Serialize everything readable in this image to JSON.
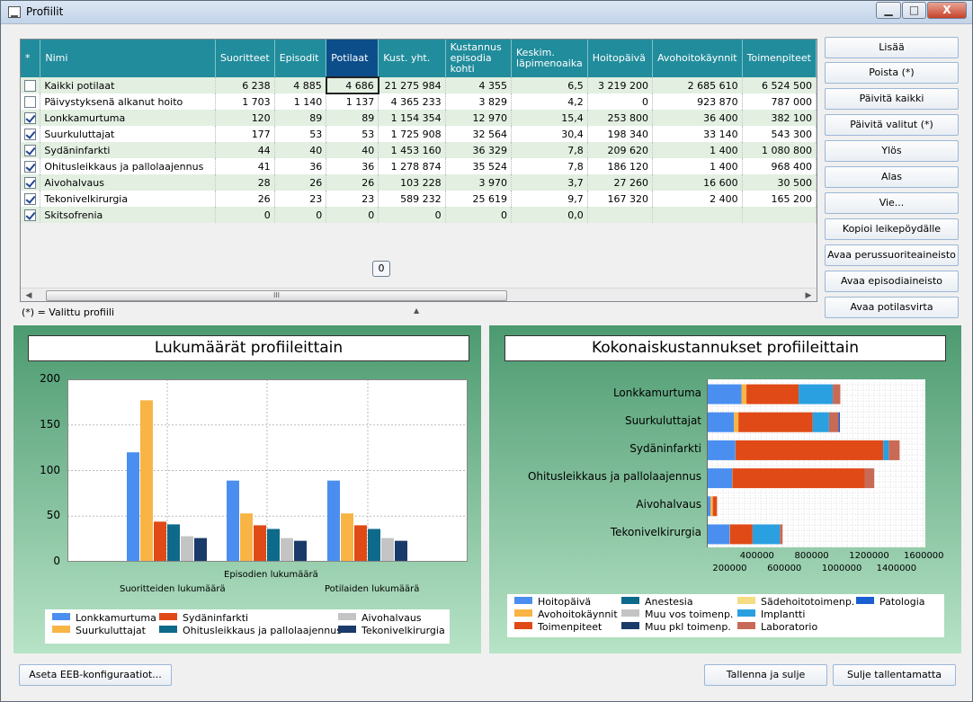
{
  "window": {
    "title": "Profiilit",
    "min_glyph": "▁",
    "max_glyph": "□",
    "close_glyph": "X"
  },
  "grid": {
    "columns": [
      "*",
      "Nimi",
      "Suoritteet",
      "Episodit",
      "Potilaat",
      "Kust. yht.",
      "Kustannus episodia kohti",
      "Keskim. läpimenoaika",
      "Hoitopäivä",
      "Avohoitokäynnit",
      "Toimenpiteet"
    ],
    "rows": [
      {
        "checked": false,
        "cells": [
          "Kaikki potilaat",
          "6 238",
          "4 885",
          "4 686",
          "21 275 984",
          "4 355",
          "6,5",
          "3 219 200",
          "2 685 610",
          "6 524 500"
        ]
      },
      {
        "checked": false,
        "cells": [
          "Päivystyksenä alkanut hoito",
          "1 703",
          "1 140",
          "1 137",
          "4 365 233",
          "3 829",
          "4,2",
          "0",
          "923 870",
          "787 000"
        ]
      },
      {
        "checked": true,
        "cells": [
          "Lonkkamurtuma",
          "120",
          "89",
          "89",
          "1 154 354",
          "12 970",
          "15,4",
          "253 800",
          "36 400",
          "382 100"
        ]
      },
      {
        "checked": true,
        "cells": [
          "Suurkuluttajat",
          "177",
          "53",
          "53",
          "1 725 908",
          "32 564",
          "30,4",
          "198 340",
          "33 140",
          "543 300"
        ]
      },
      {
        "checked": true,
        "cells": [
          "Sydäninfarkti",
          "44",
          "40",
          "40",
          "1 453 160",
          "36 329",
          "7,8",
          "209 620",
          "1 400",
          "1 080 800"
        ]
      },
      {
        "checked": true,
        "cells": [
          "Ohitusleikkaus ja pallolaajennus",
          "41",
          "36",
          "36",
          "1 278 874",
          "35 524",
          "7,8",
          "186 120",
          "1 400",
          "968 400"
        ]
      },
      {
        "checked": true,
        "cells": [
          "Aivohalvaus",
          "28",
          "26",
          "26",
          "103 228",
          "3 970",
          "3,7",
          "27 260",
          "16 600",
          "30 500"
        ]
      },
      {
        "checked": true,
        "cells": [
          "Tekonivelkirurgia",
          "26",
          "23",
          "23",
          "589 232",
          "25 619",
          "9,7",
          "167 320",
          "2 400",
          "165 200"
        ]
      },
      {
        "checked": true,
        "cells": [
          "Skitsofrenia",
          "0",
          "0",
          "0",
          "0",
          "0",
          "0,0",
          "",
          "",
          ""
        ]
      }
    ],
    "tooltip": "0",
    "scroll_grip": "III"
  },
  "note": "(*) = Valittu profiili",
  "splitter_glyph": "▲",
  "buttons": {
    "lisaa": "Lisää",
    "poista": "Poista (*)",
    "paivita_kaikki": "Päivitä kaikki",
    "paivita_valitut": "Päivitä valitut (*)",
    "ylos": "Ylös",
    "alas": "Alas",
    "vie": "Vie...",
    "kopioi": "Kopioi leikepöydälle",
    "avaa_perus": "Avaa perussuoriteaineisto",
    "avaa_episodi": "Avaa episodiaineisto",
    "avaa_potilas": "Avaa potilasvirta",
    "aseta": "Aseta EEB-konfiguraatiot...",
    "tallenna": "Tallenna ja sulje",
    "sulje": "Sulje tallentamatta"
  },
  "colors": {
    "Lonkkamurtuma": "#4a8ff0",
    "Suurkuluttajat": "#f8b444",
    "Sydäninfarkti": "#e04a16",
    "Ohitusleikkaus ja pallolaajennus": "#0e6a8a",
    "Aivohalvaus": "#c4c4c4",
    "Tekonivelkirurgia": "#1a3a6a"
  },
  "chart_data": [
    {
      "type": "bar",
      "title": "Lukumäärät profiileittain",
      "categories": [
        "Suoritteiden lukumäärä",
        "Episodien lukumäärä",
        "Potilaiden lukumäärä"
      ],
      "ylim": [
        0,
        200
      ],
      "yticks": [
        "0",
        "50",
        "100",
        "150",
        "200"
      ],
      "series": [
        {
          "name": "Lonkkamurtuma",
          "values": [
            120,
            89,
            89
          ]
        },
        {
          "name": "Suurkuluttajat",
          "values": [
            177,
            53,
            53
          ]
        },
        {
          "name": "Sydäninfarkti",
          "values": [
            44,
            40,
            40
          ]
        },
        {
          "name": "Ohitusleikkaus ja pallolaajennus",
          "values": [
            41,
            36,
            36
          ]
        },
        {
          "name": "Aivohalvaus",
          "values": [
            28,
            26,
            26
          ]
        },
        {
          "name": "Tekonivelkirurgia",
          "values": [
            26,
            23,
            23
          ]
        }
      ]
    },
    {
      "type": "bar",
      "orientation": "horizontal-stacked",
      "title": "Kokonaiskustannukset profiileittain",
      "categories": [
        "Lonkkamurtuma",
        "Suurkuluttajat",
        "Sydäninfarkti",
        "Ohitusleikkaus ja pallolaajennus",
        "Aivohalvaus",
        "Tekonivelkirurgia"
      ],
      "xlim": [
        0,
        1600000
      ],
      "xticks_top": [
        "400000",
        "800000",
        "1200000",
        "1600000"
      ],
      "xticks_bottom": [
        "200000",
        "600000",
        "1000000",
        "1400000"
      ],
      "series": [
        {
          "name": "Hoitopäivä",
          "color": "#4a8ff0",
          "values": [
            253800,
            198340,
            209620,
            186120,
            27260,
            167320
          ]
        },
        {
          "name": "Avohoitokäynnit",
          "color": "#f8b444",
          "values": [
            36400,
            33140,
            1400,
            1400,
            16600,
            2400
          ]
        },
        {
          "name": "Toimenpiteet",
          "color": "#e04a16",
          "values": [
            382100,
            543300,
            1080800,
            968400,
            30500,
            165200
          ]
        },
        {
          "name": "Anestesia",
          "color": "#0e6a8a",
          "values": [
            0,
            0,
            0,
            0,
            0,
            0
          ]
        },
        {
          "name": "Muu vos toimenp.",
          "color": "#c4c4c4",
          "values": [
            0,
            0,
            0,
            0,
            0,
            0
          ]
        },
        {
          "name": "Muu pkl toimenp.",
          "color": "#1a3a6a",
          "values": [
            0,
            0,
            0,
            0,
            0,
            0
          ]
        },
        {
          "name": "Sädehoitotoimenp.",
          "color": "#f6dc84",
          "values": [
            0,
            0,
            0,
            0,
            0,
            0
          ]
        },
        {
          "name": "Implantti",
          "color": "#2aa0e0",
          "values": [
            250000,
            120000,
            40000,
            0,
            0,
            200000
          ]
        },
        {
          "name": "Laboratorio",
          "color": "#c86a56",
          "values": [
            55000,
            70000,
            80000,
            70000,
            0,
            20000
          ]
        },
        {
          "name": "Patologia",
          "color": "#1a5ed0",
          "values": [
            0,
            10000,
            0,
            0,
            0,
            0
          ]
        }
      ]
    }
  ]
}
